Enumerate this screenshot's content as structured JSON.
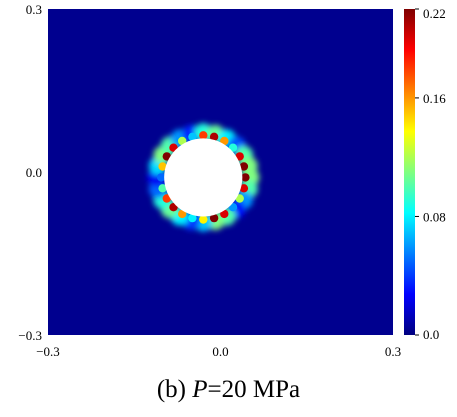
{
  "caption": {
    "prefix": "(b) ",
    "variable": "P",
    "suffix": "=20 MPa"
  },
  "chart_data": {
    "type": "heatmap",
    "title": "",
    "xlabel": "",
    "ylabel": "",
    "xlim": [
      -0.3,
      0.3
    ],
    "ylim": [
      -0.3,
      0.3
    ],
    "x_ticks": [
      "−0.3",
      "0.0",
      "0.3"
    ],
    "y_ticks": [
      "0.3",
      "0.0",
      "−0.3"
    ],
    "background_value": 0.0,
    "hole": {
      "cx": -0.03,
      "cy": -0.01,
      "r": 0.068
    },
    "damage_ring_values": [
      0.22,
      0.2,
      0.12,
      0.06,
      0.2,
      0.22,
      0.14,
      0.08,
      0.16,
      0.21,
      0.18,
      0.1,
      0.05,
      0.15,
      0.22,
      0.2,
      0.12,
      0.07,
      0.18,
      0.21,
      0.16,
      0.09,
      0.2,
      0.22
    ],
    "colorbar": {
      "range": [
        0.0,
        0.22
      ],
      "ticks": [
        "0.22",
        "0.16",
        "0.08",
        "0.0"
      ],
      "tick_values": [
        0.22,
        0.16,
        0.08,
        0.0
      ],
      "colormap": "jet"
    },
    "colors": {
      "background": "#00008f",
      "hole": "#ffffff"
    }
  }
}
